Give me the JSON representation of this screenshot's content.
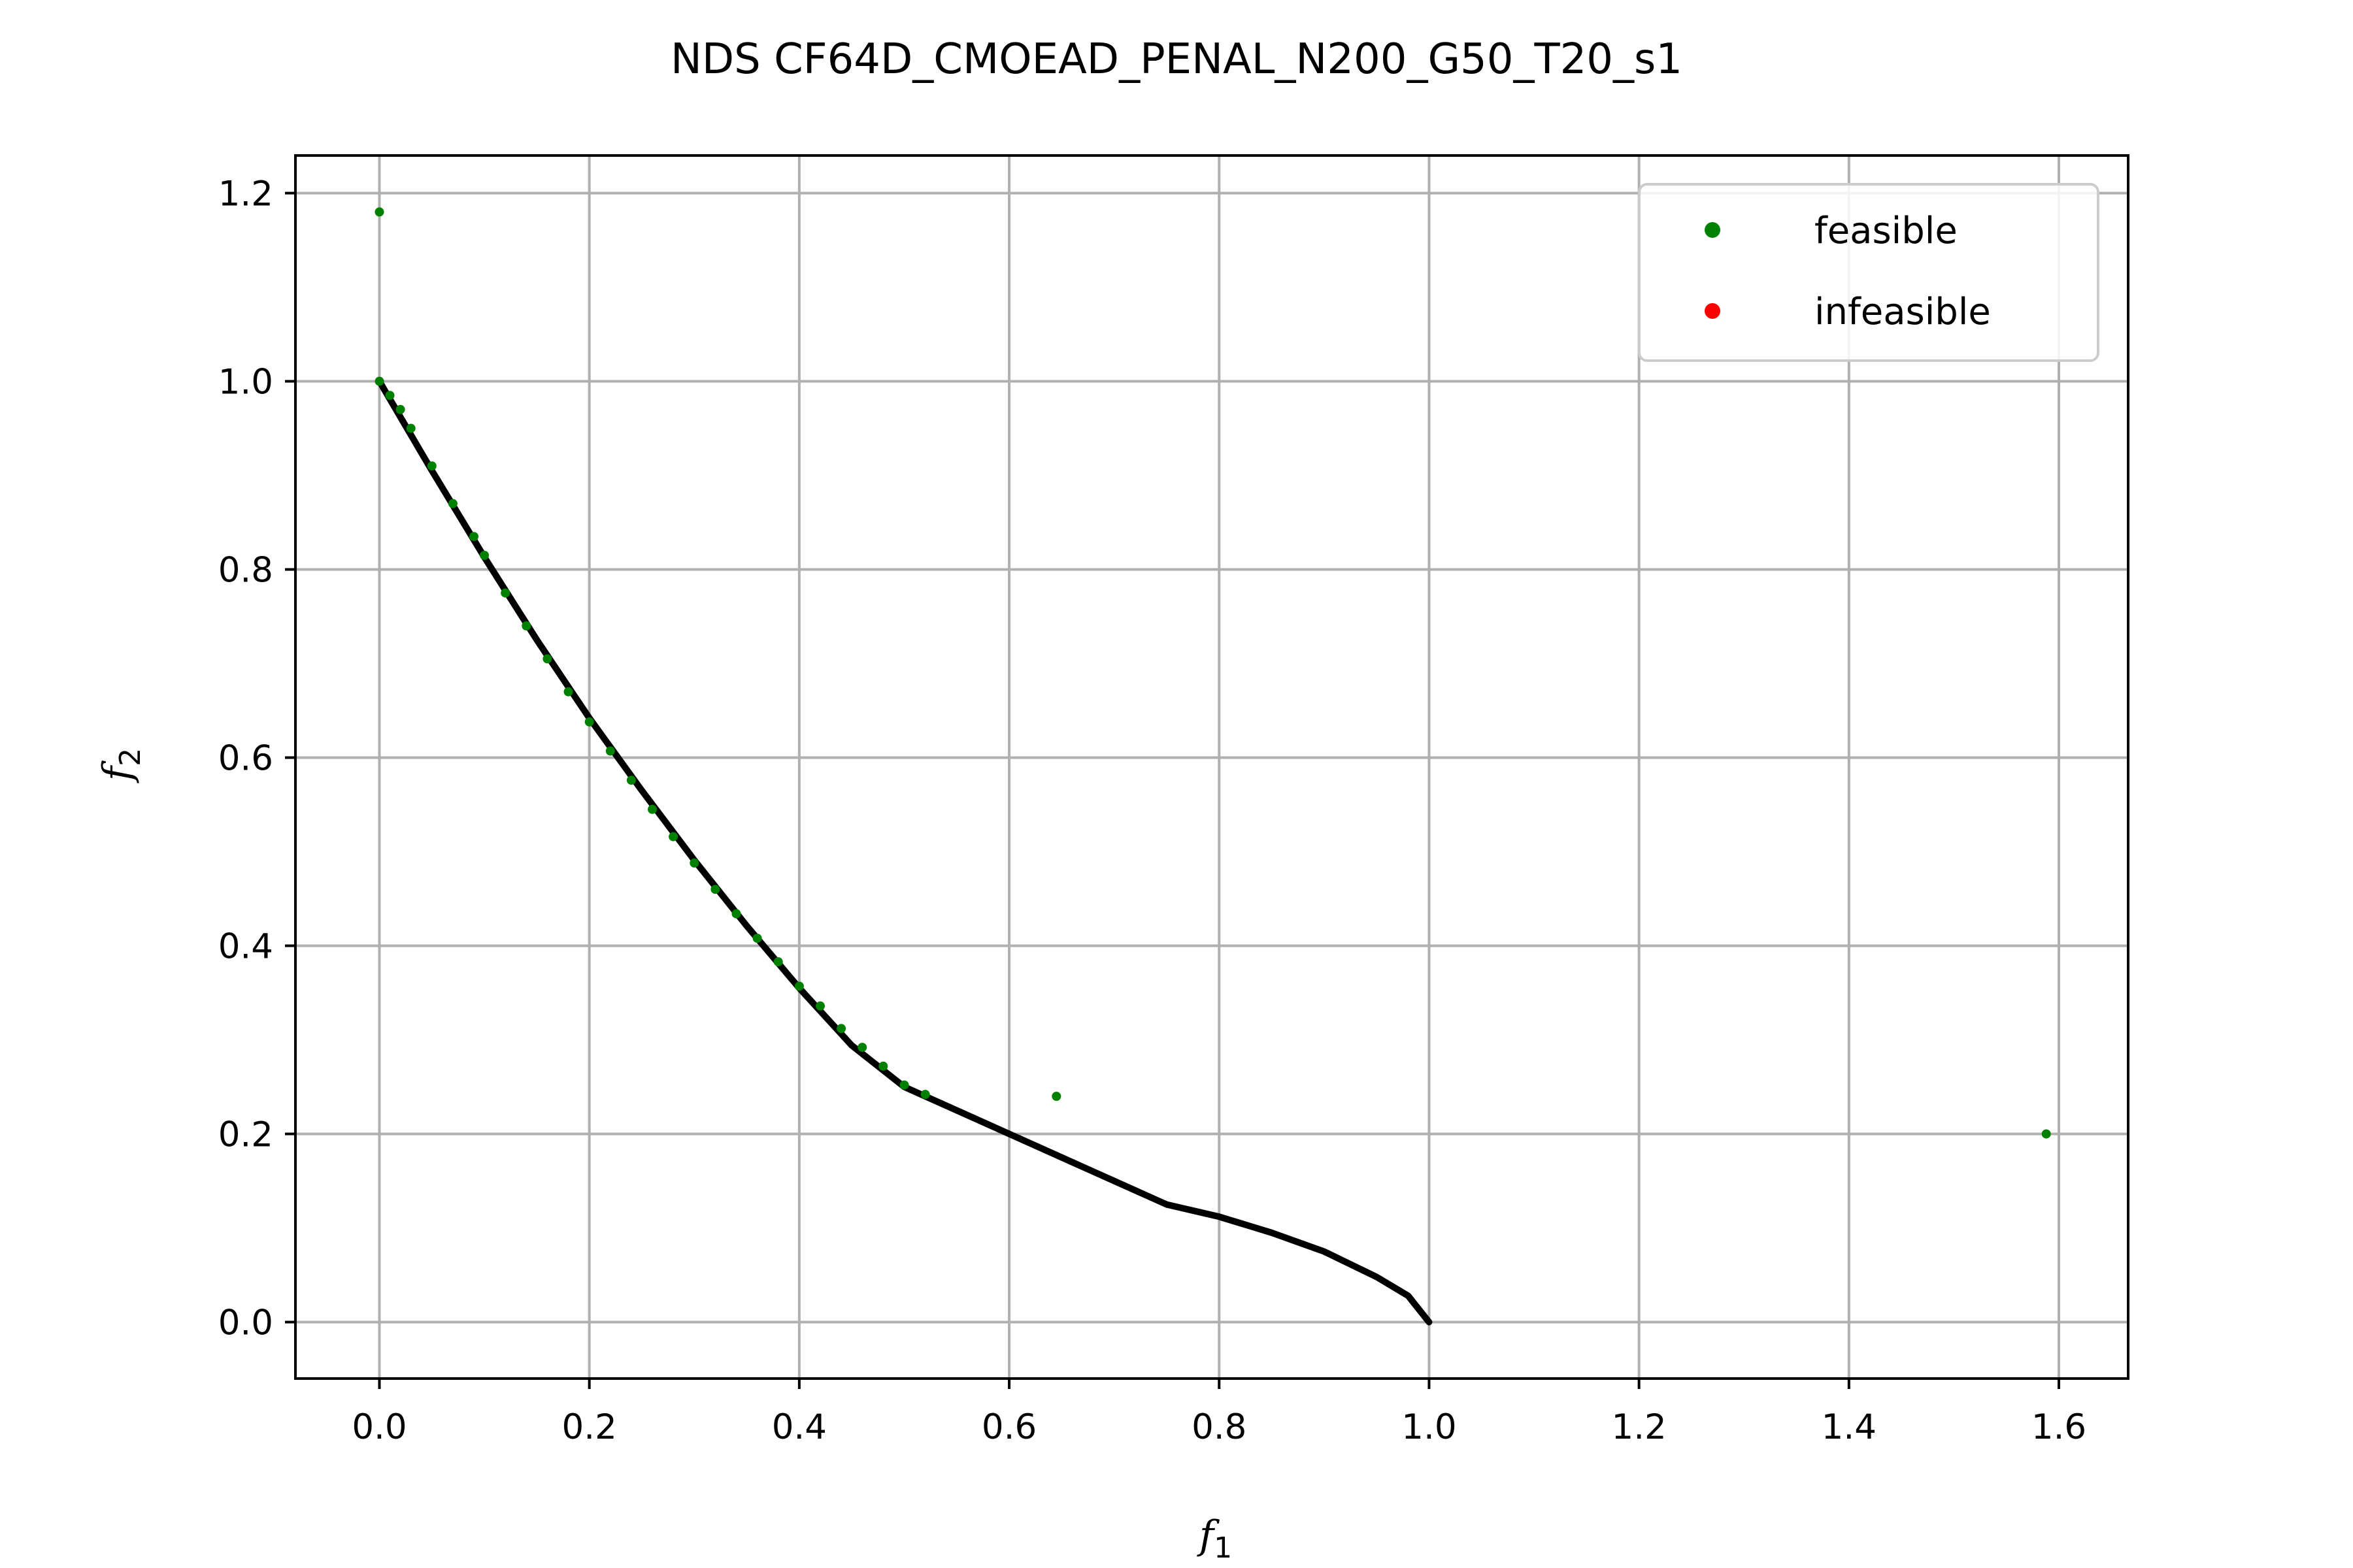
{
  "chart_data": {
    "type": "scatter",
    "title": "NDS CF64D_CMOEAD_PENAL_N200_G50_T20_s1",
    "xlabel": {
      "main": "f",
      "sub": "1"
    },
    "ylabel": {
      "main": "f",
      "sub": "2"
    },
    "xlim": [
      -0.08,
      1.666
    ],
    "ylim": [
      -0.06,
      1.24
    ],
    "xticks": [
      "0.0",
      "0.2",
      "0.4",
      "0.6",
      "0.8",
      "1.0",
      "1.2",
      "1.4",
      "1.6"
    ],
    "yticks": [
      "0.0",
      "0.2",
      "0.4",
      "0.6",
      "0.8",
      "1.0",
      "1.2"
    ],
    "grid": true,
    "legend_position": "top-right",
    "reference_front": {
      "color": "#000000",
      "x": [
        0.0,
        0.05,
        0.1,
        0.15,
        0.2,
        0.25,
        0.3,
        0.35,
        0.4,
        0.45,
        0.5,
        0.6,
        0.7,
        0.75,
        0.8,
        0.85,
        0.9,
        0.95,
        0.98,
        1.0
      ],
      "y": [
        1.0,
        0.905,
        0.813,
        0.725,
        0.642,
        0.565,
        0.491,
        0.421,
        0.355,
        0.294,
        0.25,
        0.2,
        0.15,
        0.125,
        0.112,
        0.095,
        0.075,
        0.048,
        0.028,
        0.0
      ]
    },
    "series": [
      {
        "name": "feasible",
        "color": "#008000",
        "x": [
          0.0,
          0.01,
          0.02,
          0.03,
          0.05,
          0.07,
          0.09,
          0.1,
          0.12,
          0.14,
          0.16,
          0.18,
          0.2,
          0.22,
          0.24,
          0.26,
          0.28,
          0.3,
          0.32,
          0.34,
          0.36,
          0.38,
          0.4,
          0.42,
          0.44,
          0.46,
          0.48,
          0.5,
          0.52,
          0.0,
          0.645,
          1.588
        ],
        "y": [
          1.0,
          0.985,
          0.97,
          0.95,
          0.91,
          0.87,
          0.835,
          0.815,
          0.775,
          0.74,
          0.705,
          0.67,
          0.638,
          0.607,
          0.576,
          0.545,
          0.516,
          0.488,
          0.46,
          0.434,
          0.408,
          0.383,
          0.357,
          0.336,
          0.312,
          0.292,
          0.272,
          0.252,
          0.242,
          1.18,
          0.24,
          0.2
        ]
      },
      {
        "name": "infeasible",
        "color": "#ff0000",
        "x": [],
        "y": []
      }
    ]
  }
}
